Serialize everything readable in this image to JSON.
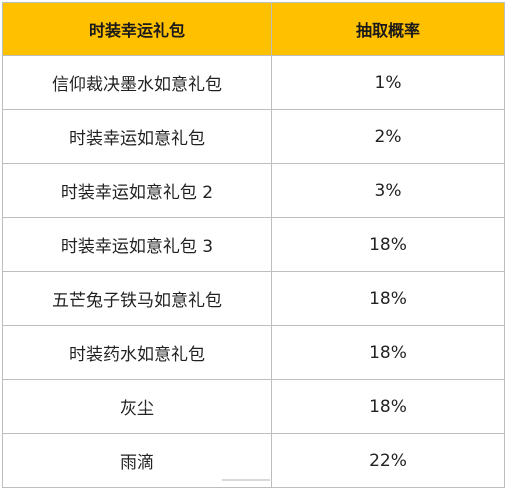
{
  "table": {
    "headers": {
      "item": "时装幸运礼包",
      "rate": "抽取概率"
    },
    "rows": [
      {
        "item": "信仰裁决墨水如意礼包",
        "rate": "1%"
      },
      {
        "item": "时装幸运如意礼包",
        "rate": "2%"
      },
      {
        "item": "时装幸运如意礼包 2",
        "rate": "3%"
      },
      {
        "item": "时装幸运如意礼包 3",
        "rate": "18%"
      },
      {
        "item": "五芒兔子铁马如意礼包",
        "rate": "18%"
      },
      {
        "item": "时装药水如意礼包",
        "rate": "18%"
      },
      {
        "item": "灰尘",
        "rate": "18%"
      },
      {
        "item": "雨滴",
        "rate": "22%"
      }
    ]
  }
}
